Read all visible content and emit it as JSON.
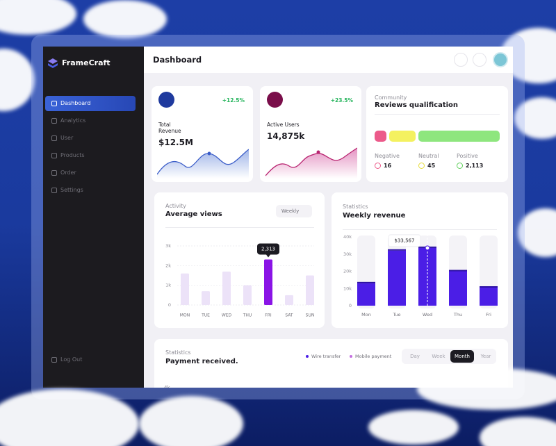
{
  "sidebar": {
    "brand": "FrameCraft",
    "nav": [
      "Dashboard",
      "Analytics",
      "User",
      "Products",
      "Order",
      "Settings"
    ],
    "logout": "Log Out"
  },
  "header": {
    "title": "Dashboard"
  },
  "cards": [
    {
      "label": "Total Revenue",
      "value": "$12.5M",
      "change": "+12.5%"
    },
    {
      "label": "Active Users",
      "value": "14,875k",
      "change": "+23.5%"
    }
  ],
  "community": {
    "subtitle": "Community",
    "title": "Reviews qualification",
    "items": [
      {
        "label": "Negative",
        "count": "16"
      },
      {
        "label": "Neutral",
        "count": "45"
      },
      {
        "label": "Positive",
        "count": "2,113"
      }
    ]
  },
  "payment": {
    "subtitle": "Statistics",
    "title": "Payment received.",
    "legend": [
      "Wire transfer",
      "Mobile payment"
    ],
    "tabs": [
      {
        "label": "Day",
        "active": false
      },
      {
        "label": "Week",
        "active": false
      },
      {
        "label": "Month",
        "active": true
      },
      {
        "label": "Year",
        "active": false
      }
    ],
    "ytick": "4k"
  },
  "chart_data": [
    {
      "type": "bar",
      "subtitle": "Activity",
      "title": "Average views",
      "control": "Weekly",
      "categories": [
        "MON",
        "TUE",
        "WED",
        "THU",
        "FRI",
        "SAT",
        "SUN"
      ],
      "values": [
        1600,
        700,
        1700,
        1000,
        2313,
        500,
        1500
      ],
      "value_labels": [
        null,
        null,
        null,
        null,
        "2,313",
        null,
        null
      ],
      "color": "#ece2f8",
      "highlight_color": "#8a14e6",
      "ylim": [
        0,
        3000
      ],
      "yticks": [
        {
          "value": 0,
          "label": "0"
        },
        {
          "value": 1000,
          "label": "1k"
        },
        {
          "value": 2000,
          "label": "2k"
        },
        {
          "value": 3000,
          "label": "3k"
        }
      ],
      "grid": true
    },
    {
      "type": "bar",
      "subtitle": "Statistics",
      "title": "Weekly revenue",
      "categories": [
        "Mon",
        "Tue",
        "Wed",
        "Thu",
        "Fri"
      ],
      "values": [
        13000,
        32000,
        33567,
        20000,
        10500
      ],
      "value_labels": [
        null,
        null,
        "$33,567",
        null,
        null
      ],
      "color": "#4b1ee6",
      "highlight_color": "#4b1ee6",
      "ylim": [
        0,
        40000
      ],
      "yticks": [
        {
          "value": 0,
          "label": "0"
        },
        {
          "value": 10000,
          "label": "10k"
        },
        {
          "value": 20000,
          "label": "20k"
        },
        {
          "value": 30000,
          "label": "30k"
        },
        {
          "value": 40000,
          "label": "40k"
        }
      ],
      "grid": false
    }
  ]
}
